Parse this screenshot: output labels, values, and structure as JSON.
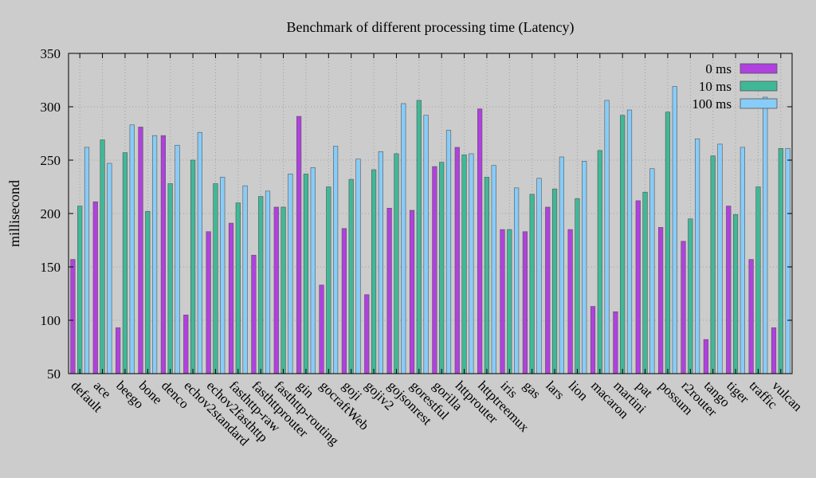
{
  "chart_data": {
    "type": "bar",
    "title": "Benchmark of different processing time (Latency)",
    "xlabel": "",
    "ylabel": "millisecond",
    "ylim": [
      50,
      350
    ],
    "yticks": [
      50,
      100,
      150,
      200,
      250,
      300,
      350
    ],
    "grid": true,
    "legend_position": "top-right",
    "categories": [
      "default",
      "ace",
      "beego",
      "bone",
      "denco",
      "echov2standard",
      "echov2fasthttp",
      "fasthttp-raw",
      "fasthttprouter",
      "fasthttp-routing",
      "gin",
      "gocraftWeb",
      "goji",
      "gojiv2",
      "gojsonrest",
      "gorestful",
      "gorilla",
      "httprouter",
      "httptreemux",
      "iris",
      "gas",
      "lars",
      "lion",
      "macaron",
      "martini",
      "pat",
      "possum",
      "r2router",
      "tango",
      "tiger",
      "traffic",
      "vulcan"
    ],
    "series": [
      {
        "name": "0 ms",
        "color": "#b040e0",
        "values": [
          157,
          211,
          93,
          281,
          273,
          105,
          183,
          191,
          161,
          206,
          291,
          133,
          186,
          124,
          205,
          203,
          244,
          262,
          298,
          185,
          183,
          206,
          185,
          113,
          108,
          212,
          187,
          174,
          82,
          207,
          157,
          93
        ]
      },
      {
        "name": "10 ms",
        "color": "#40b898",
        "values": [
          207,
          269,
          257,
          202,
          228,
          250,
          228,
          210,
          216,
          206,
          237,
          225,
          232,
          241,
          256,
          306,
          248,
          255,
          234,
          185,
          218,
          223,
          214,
          259,
          292,
          220,
          295,
          195,
          254,
          199,
          225,
          261
        ]
      },
      {
        "name": "100 ms",
        "color": "#88ccf8",
        "values": [
          262,
          247,
          283,
          273,
          264,
          276,
          234,
          226,
          221,
          237,
          243,
          263,
          251,
          258,
          303,
          292,
          278,
          256,
          245,
          224,
          233,
          253,
          249,
          306,
          297,
          242,
          319,
          270,
          265,
          262,
          309,
          261
        ]
      }
    ]
  }
}
